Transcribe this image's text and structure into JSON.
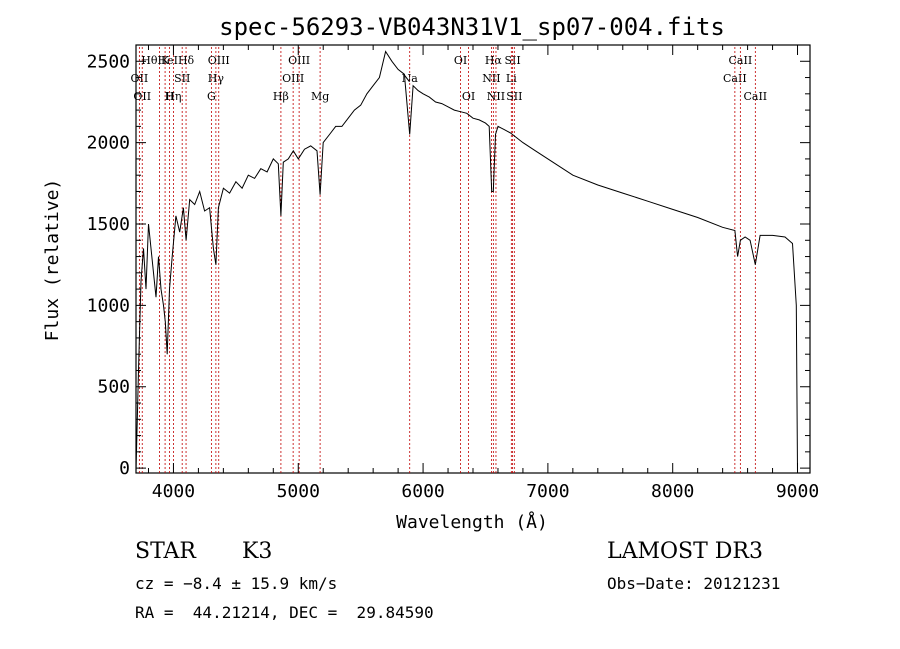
{
  "chart_data": {
    "type": "line",
    "title": "spec-56293-VB043N31V1_sp07-004.fits",
    "xlabel": "Wavelength (Å)",
    "ylabel": "Flux (relative)",
    "xlim": [
      3700,
      9100
    ],
    "ylim": [
      -30,
      2600
    ],
    "x_ticks": [
      4000,
      5000,
      6000,
      7000,
      8000,
      9000
    ],
    "y_ticks": [
      0,
      500,
      1000,
      1500,
      2000,
      2500
    ],
    "series": [
      {
        "name": "flux",
        "x": [
          3700,
          3720,
          3740,
          3760,
          3780,
          3800,
          3820,
          3840,
          3860,
          3880,
          3900,
          3920,
          3935,
          3950,
          3968,
          3990,
          4020,
          4050,
          4080,
          4101,
          4130,
          4170,
          4210,
          4250,
          4290,
          4320,
          4340,
          4360,
          4400,
          4450,
          4500,
          4550,
          4600,
          4650,
          4700,
          4750,
          4800,
          4840,
          4861,
          4880,
          4920,
          4960,
          5000,
          5050,
          5100,
          5150,
          5175,
          5200,
          5250,
          5300,
          5350,
          5400,
          5450,
          5500,
          5550,
          5600,
          5650,
          5700,
          5750,
          5800,
          5850,
          5893,
          5920,
          5960,
          6000,
          6050,
          6100,
          6150,
          6200,
          6250,
          6300,
          6350,
          6400,
          6450,
          6500,
          6530,
          6550,
          6563,
          6580,
          6600,
          6650,
          6700,
          6800,
          6900,
          7000,
          7200,
          7400,
          7600,
          7800,
          8000,
          8200,
          8400,
          8498,
          8520,
          8542,
          8580,
          8620,
          8662,
          8700,
          8800,
          8900,
          8960,
          8990,
          9000
        ],
        "y": [
          -20,
          600,
          1150,
          1350,
          1100,
          1500,
          1350,
          1200,
          1050,
          1300,
          1100,
          1000,
          900,
          700,
          1100,
          1300,
          1550,
          1450,
          1600,
          1400,
          1650,
          1620,
          1700,
          1580,
          1600,
          1350,
          1250,
          1600,
          1720,
          1690,
          1760,
          1720,
          1800,
          1780,
          1840,
          1820,
          1900,
          1870,
          1550,
          1880,
          1900,
          1950,
          1900,
          1960,
          1980,
          1950,
          1680,
          2000,
          2050,
          2100,
          2100,
          2150,
          2200,
          2230,
          2300,
          2350,
          2400,
          2560,
          2500,
          2450,
          2420,
          2050,
          2350,
          2320,
          2300,
          2280,
          2250,
          2240,
          2220,
          2200,
          2190,
          2180,
          2150,
          2140,
          2120,
          2100,
          1700,
          1700,
          2050,
          2100,
          2080,
          2060,
          2000,
          1950,
          1900,
          1800,
          1740,
          1690,
          1640,
          1590,
          1540,
          1480,
          1460,
          1300,
          1400,
          1420,
          1400,
          1250,
          1430,
          1430,
          1420,
          1380,
          1000,
          -20
        ]
      }
    ],
    "line_markers": [
      {
        "x": 3727,
        "labels": [
          "OII"
        ],
        "row": 1
      },
      {
        "x": 3750,
        "labels": [
          "OII"
        ],
        "row": 2
      },
      {
        "x": 3889,
        "labels": [
          "Hθ",
          "HeI"
        ],
        "row": 0
      },
      {
        "x": 3933,
        "labels": [
          "K"
        ],
        "row": 0
      },
      {
        "x": 3968,
        "labels": [
          "H"
        ],
        "row": 2
      },
      {
        "x": 4000,
        "labels": [
          "Hη"
        ],
        "row": 2
      },
      {
        "x": 4070,
        "labels": [
          "SII"
        ],
        "row": 1
      },
      {
        "x": 4101,
        "labels": [
          "Hδ"
        ],
        "row": 0
      },
      {
        "x": 4304,
        "labels": [
          "G"
        ],
        "row": 2
      },
      {
        "x": 4340,
        "labels": [
          "Hγ"
        ],
        "row": 1
      },
      {
        "x": 4363,
        "labels": [
          "OIII"
        ],
        "row": 0
      },
      {
        "x": 4861,
        "labels": [
          "Hβ"
        ],
        "row": 2
      },
      {
        "x": 4959,
        "labels": [
          "OIII"
        ],
        "row": 1
      },
      {
        "x": 5007,
        "labels": [
          "OIII"
        ],
        "row": 0
      },
      {
        "x": 5175,
        "labels": [
          "Mg"
        ],
        "row": 2
      },
      {
        "x": 5893,
        "labels": [
          "Na"
        ],
        "row": 1
      },
      {
        "x": 6300,
        "labels": [
          "OI"
        ],
        "row": 0
      },
      {
        "x": 6364,
        "labels": [
          "OI"
        ],
        "row": 2
      },
      {
        "x": 6548,
        "labels": [
          "NII"
        ],
        "row": 1
      },
      {
        "x": 6563,
        "labels": [
          "Hα"
        ],
        "row": 0
      },
      {
        "x": 6584,
        "labels": [
          "NII"
        ],
        "row": 2
      },
      {
        "x": 6707,
        "labels": [
          "Li"
        ],
        "row": 1
      },
      {
        "x": 6717,
        "labels": [
          "SII"
        ],
        "row": 0
      },
      {
        "x": 6731,
        "labels": [
          "SII"
        ],
        "row": 2
      },
      {
        "x": 8498,
        "labels": [
          "CaII"
        ],
        "row": 1
      },
      {
        "x": 8542,
        "labels": [
          "CaII"
        ],
        "row": 0
      },
      {
        "x": 8662,
        "labels": [
          "CaII"
        ],
        "row": 2
      }
    ]
  },
  "info": {
    "class": "STAR",
    "subclass": "K3",
    "survey": "LAMOST DR3",
    "cz": "cz = −8.4 ± 15.9 km/s",
    "obs_date": "Obs−Date: 20121231",
    "coords": "RA =  44.21214, DEC =  29.84590"
  }
}
